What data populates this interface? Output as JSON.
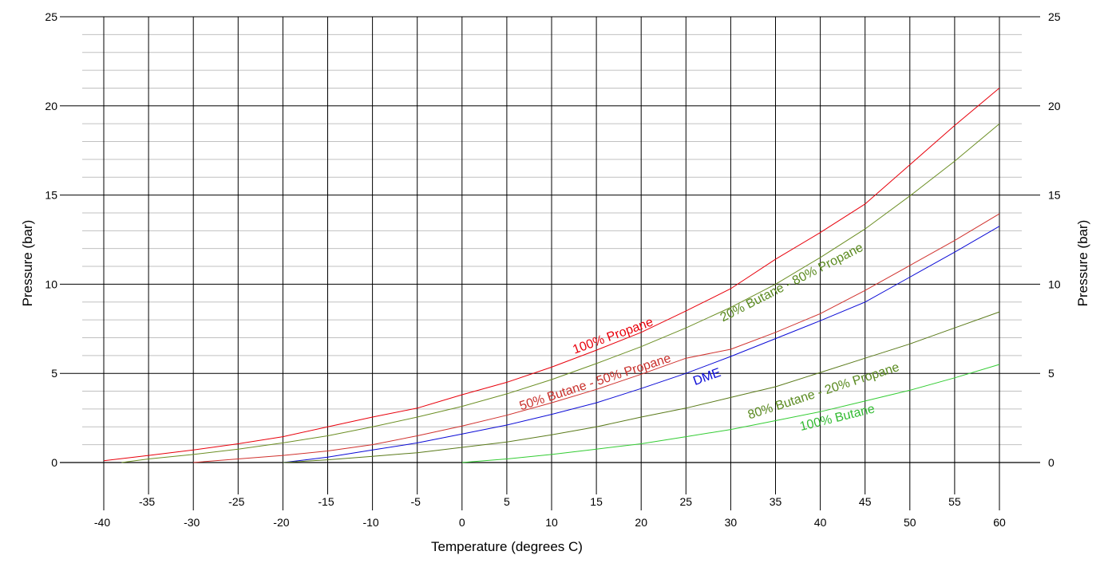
{
  "chart_data": {
    "type": "line",
    "title": "",
    "xlabel": "Temperature (degrees C)",
    "ylabel": "Pressure (bar)",
    "ylabel_right": "Pressure (bar)",
    "xlim": [
      -40,
      60
    ],
    "ylim": [
      0,
      25
    ],
    "x_ticks_major": [
      "-40",
      "-30",
      "-20",
      "-10",
      "0",
      "10",
      "20",
      "30",
      "40",
      "50",
      "60"
    ],
    "x_ticks_minor": [
      "-35",
      "-25",
      "-15",
      "-5",
      "5",
      "15",
      "25",
      "35",
      "45",
      "55"
    ],
    "y_ticks": [
      "0",
      "5",
      "10",
      "15",
      "20",
      "25"
    ],
    "grid": true,
    "series": [
      {
        "name": "100% Propane",
        "color": "#e8000b",
        "label_color": "#e8000b",
        "x": [
          -40,
          -35,
          -30,
          -25,
          -20,
          -15,
          -10,
          -5,
          0,
          5,
          10,
          15,
          20,
          25,
          30,
          35,
          40,
          45,
          50,
          55,
          60
        ],
        "values": [
          0.1,
          0.4,
          0.7,
          1.05,
          1.45,
          2.0,
          2.55,
          3.05,
          3.8,
          4.5,
          5.35,
          6.3,
          7.3,
          8.5,
          9.75,
          11.4,
          12.9,
          14.5,
          16.7,
          18.9,
          21.0
        ]
      },
      {
        "name": "20% Butane - 80% Propane",
        "color": "#6b8e23",
        "label_color": "#5a8a20",
        "x": [
          -38,
          -35,
          -30,
          -25,
          -20,
          -15,
          -10,
          -5,
          0,
          5,
          10,
          15,
          20,
          25,
          30,
          35,
          40,
          45,
          50,
          55,
          60
        ],
        "values": [
          0.0,
          0.2,
          0.45,
          0.75,
          1.1,
          1.5,
          2.0,
          2.55,
          3.15,
          3.85,
          4.65,
          5.55,
          6.5,
          7.55,
          8.7,
          10.0,
          11.5,
          13.1,
          14.95,
          16.9,
          19.0
        ]
      },
      {
        "name": "50% Butane - 50% Propane",
        "color": "#d0312d",
        "label_color": "#c9302c",
        "x": [
          -30,
          -25,
          -20,
          -15,
          -10,
          -5,
          0,
          5,
          10,
          15,
          20,
          25,
          30,
          35,
          40,
          45,
          50,
          55,
          60
        ],
        "values": [
          0.0,
          0.2,
          0.4,
          0.65,
          1.0,
          1.5,
          2.05,
          2.65,
          3.35,
          4.1,
          4.95,
          5.85,
          6.35,
          7.3,
          8.35,
          9.65,
          11.05,
          12.45,
          13.95
        ]
      },
      {
        "name": "DME",
        "color": "#0a0ad6",
        "label_color": "#0a0ad6",
        "x": [
          -20,
          -15,
          -10,
          -5,
          0,
          5,
          10,
          15,
          20,
          25,
          30,
          35,
          40,
          45,
          50,
          55,
          60
        ],
        "values": [
          0.0,
          0.3,
          0.7,
          1.1,
          1.6,
          2.1,
          2.7,
          3.35,
          4.15,
          5.0,
          5.95,
          6.95,
          7.95,
          9.0,
          10.4,
          11.8,
          13.25
        ]
      },
      {
        "name": "80% Butane - 20% Propane",
        "color": "#5a7a1a",
        "label_color": "#5a8a20",
        "x": [
          -20,
          -15,
          -10,
          -5,
          0,
          5,
          10,
          15,
          20,
          25,
          30,
          35,
          40,
          45,
          50,
          55,
          60
        ],
        "values": [
          0.0,
          0.15,
          0.35,
          0.55,
          0.85,
          1.15,
          1.55,
          2.0,
          2.55,
          3.05,
          3.65,
          4.25,
          5.05,
          5.85,
          6.65,
          7.55,
          8.45
        ]
      },
      {
        "name": "100% Butane",
        "color": "#33cc33",
        "label_color": "#33bb33",
        "x": [
          0,
          5,
          10,
          15,
          20,
          25,
          30,
          35,
          40,
          45,
          50,
          55,
          60
        ],
        "values": [
          0.0,
          0.2,
          0.45,
          0.75,
          1.05,
          1.45,
          1.85,
          2.35,
          2.85,
          3.45,
          4.05,
          4.75,
          5.5
        ]
      }
    ],
    "annotations": [
      {
        "text": "100% Propane",
        "series": 0,
        "x": 17,
        "y": 6.9,
        "angle": -20
      },
      {
        "text": "20% Butane - 80% Propane",
        "series": 1,
        "x": 37,
        "y": 9.9,
        "angle": -27
      },
      {
        "text": "50% Butane - 50% Propane",
        "series": 2,
        "x": 15,
        "y": 4.3,
        "angle": -18
      },
      {
        "text": "DME",
        "series": 3,
        "x": 27.5,
        "y": 4.6,
        "angle": -20
      },
      {
        "text": "80% Butane - 20% Propane",
        "series": 4,
        "x": 40.5,
        "y": 3.8,
        "angle": -18
      },
      {
        "text": "100% Butane",
        "series": 5,
        "x": 42,
        "y": 2.3,
        "angle": -14
      }
    ]
  }
}
